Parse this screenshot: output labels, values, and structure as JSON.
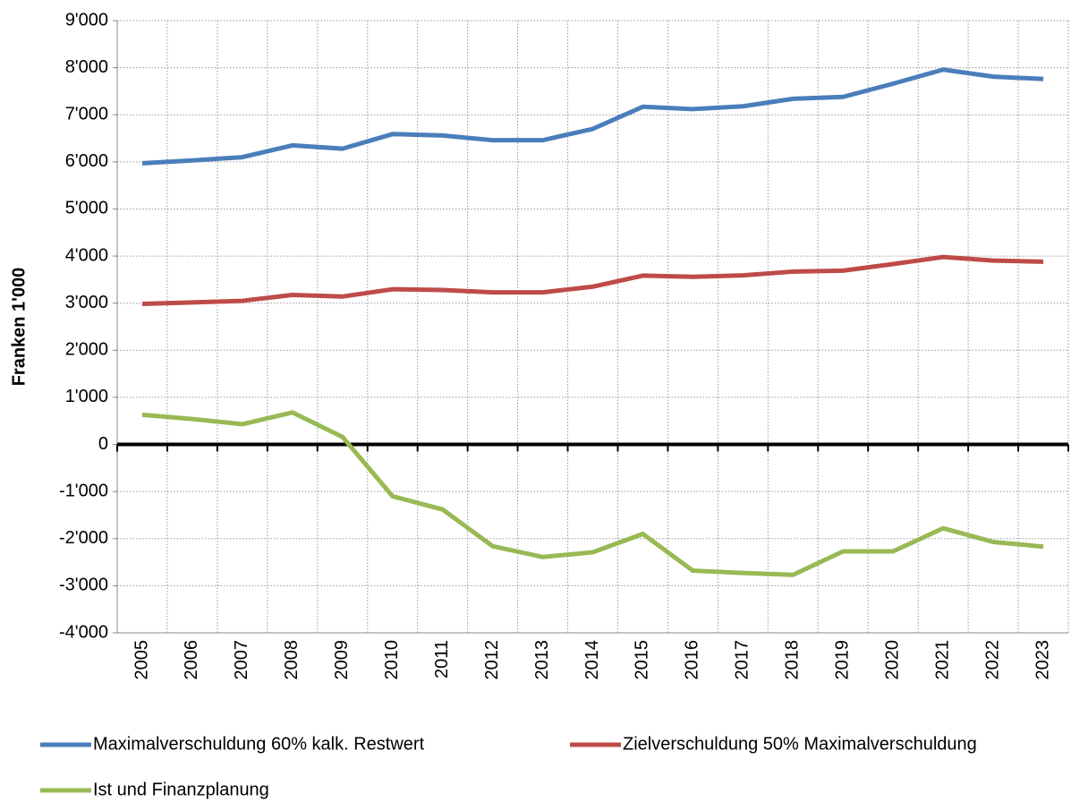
{
  "chart_data": {
    "type": "line",
    "y_label": "Franken 1'000",
    "categories": [
      "2005",
      "2006",
      "2007",
      "2008",
      "2009",
      "2010",
      "2011",
      "2012",
      "2013",
      "2014",
      "2015",
      "2016",
      "2017",
      "2018",
      "2019",
      "2020",
      "2021",
      "2022",
      "2023"
    ],
    "series": [
      {
        "name": "Maximalverschuldung 60% kalk. Restwert",
        "color": "#4a7ebb",
        "values": [
          5970,
          6030,
          6100,
          6350,
          6280,
          6590,
          6560,
          6460,
          6460,
          6700,
          7170,
          7120,
          7180,
          7340,
          7380,
          7660,
          7960,
          7810,
          7760
        ]
      },
      {
        "name": "Zielverschuldung 50% Maximalverschuldung",
        "color": "#be4b48",
        "values": [
          2985,
          3015,
          3050,
          3175,
          3140,
          3295,
          3280,
          3230,
          3230,
          3350,
          3585,
          3560,
          3590,
          3670,
          3690,
          3830,
          3980,
          3905,
          3880
        ]
      },
      {
        "name": "Ist und Finanzplanung",
        "color": "#98b954",
        "values": [
          630,
          540,
          430,
          680,
          160,
          -1100,
          -1380,
          -2160,
          -2390,
          -2290,
          -1900,
          -2680,
          -2730,
          -2770,
          -2270,
          -2270,
          -1780,
          -2070,
          -2170
        ]
      }
    ],
    "ylim": [
      -4000,
      9000
    ],
    "yticks": [
      {
        "value": -4000,
        "label": "-4'000"
      },
      {
        "value": -3000,
        "label": "-3'000"
      },
      {
        "value": -2000,
        "label": "-2'000"
      },
      {
        "value": -1000,
        "label": "-1'000"
      },
      0,
      {
        "value": 1000,
        "label": "1'000"
      },
      {
        "value": 2000,
        "label": "2'000"
      },
      {
        "value": 3000,
        "label": "3'000"
      },
      {
        "value": 4000,
        "label": "4'000"
      },
      {
        "value": 5000,
        "label": "5'000"
      },
      {
        "value": 6000,
        "label": "6'000"
      },
      {
        "value": 7000,
        "label": "7'000"
      },
      {
        "value": 8000,
        "label": "8'000"
      },
      {
        "value": 9000,
        "label": "9'000"
      }
    ],
    "grid": true,
    "legend": "bottom"
  }
}
